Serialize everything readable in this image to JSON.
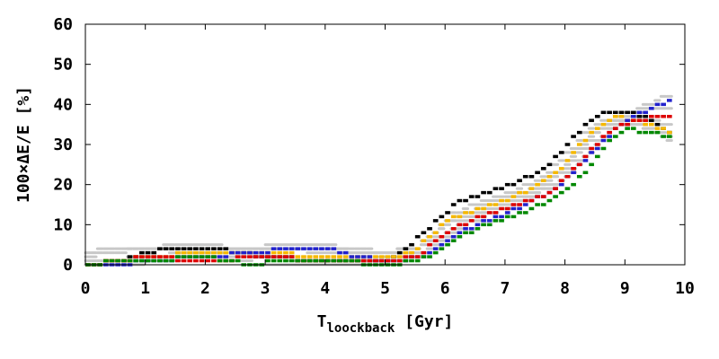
{
  "chart_data": {
    "type": "line",
    "xlabel_main": "T",
    "xlabel_sub": "loockback",
    "xlabel_unit": " [Gyr]",
    "ylabel": "100×ΔE/E [%]",
    "xlim": [
      0,
      10
    ],
    "ylim": [
      0,
      60
    ],
    "xticks": [
      "0",
      "1",
      "2",
      "3",
      "4",
      "5",
      "6",
      "7",
      "8",
      "9",
      "10"
    ],
    "yticks": [
      "0",
      "10",
      "20",
      "30",
      "40",
      "50",
      "60"
    ],
    "grid": false,
    "legend": "none",
    "series": [
      {
        "color": "#000000",
        "points": [
          [
            0,
            0
          ],
          [
            0.5,
            1
          ],
          [
            1,
            3
          ],
          [
            1.2,
            4
          ],
          [
            2.2,
            4
          ],
          [
            3,
            2
          ],
          [
            4,
            1
          ],
          [
            5,
            1
          ],
          [
            5.3,
            4
          ],
          [
            5.6,
            8
          ],
          [
            5.9,
            12
          ],
          [
            6.1,
            15
          ],
          [
            6.4,
            17
          ],
          [
            6.8,
            19
          ],
          [
            7.2,
            21
          ],
          [
            7.6,
            24
          ],
          [
            8,
            30
          ],
          [
            8.3,
            35
          ],
          [
            8.6,
            38
          ],
          [
            9,
            38
          ],
          [
            9.4,
            36
          ],
          [
            9.7,
            33
          ]
        ]
      },
      {
        "color": "#f5b800",
        "points": [
          [
            0,
            0
          ],
          [
            0.5,
            1
          ],
          [
            1,
            2
          ],
          [
            2,
            3
          ],
          [
            3,
            3
          ],
          [
            4,
            2
          ],
          [
            5,
            2
          ],
          [
            5.4,
            3
          ],
          [
            5.7,
            7
          ],
          [
            6,
            11
          ],
          [
            6.3,
            13
          ],
          [
            6.7,
            15
          ],
          [
            7.1,
            17
          ],
          [
            7.5,
            20
          ],
          [
            7.9,
            24
          ],
          [
            8.2,
            30
          ],
          [
            8.5,
            34
          ],
          [
            8.8,
            37
          ],
          [
            9.1,
            36
          ],
          [
            9.4,
            35
          ],
          [
            9.7,
            33
          ]
        ]
      },
      {
        "color": "#2222cc",
        "points": [
          [
            0,
            0
          ],
          [
            0.5,
            0
          ],
          [
            1,
            1
          ],
          [
            2,
            2
          ],
          [
            2.8,
            3
          ],
          [
            3.3,
            4
          ],
          [
            4,
            4
          ],
          [
            4.5,
            2
          ],
          [
            5,
            1
          ],
          [
            5.6,
            2
          ],
          [
            5.9,
            5
          ],
          [
            6.2,
            8
          ],
          [
            6.6,
            11
          ],
          [
            7,
            13
          ],
          [
            7.4,
            16
          ],
          [
            7.8,
            19
          ],
          [
            8.1,
            23
          ],
          [
            8.4,
            28
          ],
          [
            8.8,
            34
          ],
          [
            9.1,
            37
          ],
          [
            9.5,
            40
          ],
          [
            9.7,
            41
          ]
        ]
      },
      {
        "color": "#dd0000",
        "points": [
          [
            0,
            0
          ],
          [
            0.5,
            1
          ],
          [
            1,
            2
          ],
          [
            2,
            1
          ],
          [
            3,
            2
          ],
          [
            4,
            1
          ],
          [
            5,
            1
          ],
          [
            5.5,
            2
          ],
          [
            5.8,
            6
          ],
          [
            6.1,
            9
          ],
          [
            6.5,
            12
          ],
          [
            6.9,
            14
          ],
          [
            7.3,
            16
          ],
          [
            7.7,
            18
          ],
          [
            8,
            22
          ],
          [
            8.3,
            27
          ],
          [
            8.6,
            32
          ],
          [
            8.9,
            35
          ],
          [
            9.2,
            36
          ],
          [
            9.5,
            37
          ],
          [
            9.7,
            37
          ]
        ]
      },
      {
        "color": "#008800",
        "points": [
          [
            0,
            0
          ],
          [
            0.5,
            1
          ],
          [
            1,
            1
          ],
          [
            2,
            2
          ],
          [
            2.7,
            0
          ],
          [
            3.2,
            1
          ],
          [
            4,
            1
          ],
          [
            5,
            0
          ],
          [
            5.5,
            1
          ],
          [
            5.8,
            3
          ],
          [
            6.2,
            7
          ],
          [
            6.6,
            10
          ],
          [
            7,
            12
          ],
          [
            7.4,
            14
          ],
          [
            7.8,
            17
          ],
          [
            8.1,
            20
          ],
          [
            8.4,
            25
          ],
          [
            8.7,
            31
          ],
          [
            9,
            34
          ],
          [
            9.3,
            33
          ],
          [
            9.7,
            32
          ]
        ]
      }
    ]
  }
}
